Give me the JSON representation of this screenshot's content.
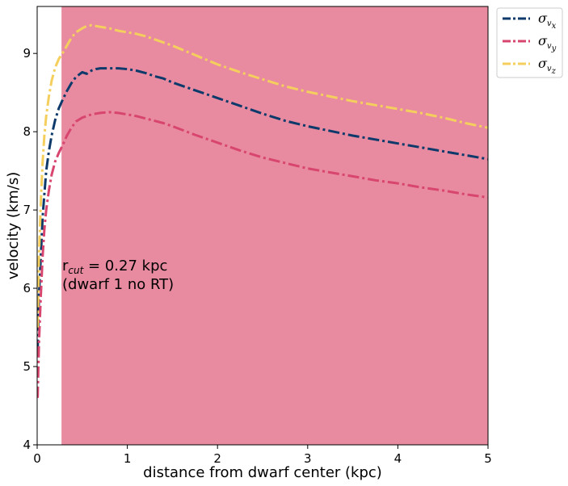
{
  "chart_data": {
    "type": "line",
    "xlabel": "distance from dwarf center (kpc)",
    "ylabel": "velocity (km/s)",
    "xlim": [
      0,
      5
    ],
    "ylim": [
      4,
      9.6
    ],
    "x_ticks": [
      "0",
      "1",
      "2",
      "3",
      "4",
      "5"
    ],
    "y_ticks": [
      "4",
      "5",
      "6",
      "7",
      "8",
      "9"
    ],
    "grid": false,
    "legend_position": "outside top-right",
    "shaded_region": {
      "x_start": 0.27,
      "x_end": 5,
      "color": "#e88ba0"
    },
    "annotation": {
      "line1_prefix": "r",
      "line1_sub": "cut",
      "line1_value": " = 0.27 kpc",
      "line2": "(dwarf 1 no RT)"
    },
    "series": [
      {
        "name": "σ_vx",
        "legend_base": "σ",
        "legend_sub1": "v",
        "legend_sub2": "x",
        "color": "#0d3a6b",
        "style": "dashdot",
        "x": [
          0.005,
          0.02,
          0.04,
          0.06,
          0.08,
          0.1,
          0.13,
          0.16,
          0.2,
          0.24,
          0.28,
          0.33,
          0.38,
          0.43,
          0.5,
          0.55,
          0.6,
          0.65,
          0.7,
          0.8,
          0.9,
          1.0,
          1.1,
          1.2,
          1.3,
          1.4,
          1.5,
          1.75,
          2.0,
          2.25,
          2.5,
          2.75,
          3.0,
          3.25,
          3.5,
          3.75,
          4.0,
          4.25,
          4.5,
          4.75,
          5.0
        ],
        "y": [
          5.2,
          5.9,
          6.4,
          6.9,
          7.2,
          7.5,
          7.75,
          7.95,
          8.15,
          8.3,
          8.4,
          8.52,
          8.62,
          8.7,
          8.76,
          8.74,
          8.78,
          8.8,
          8.81,
          8.81,
          8.81,
          8.8,
          8.78,
          8.75,
          8.71,
          8.68,
          8.63,
          8.53,
          8.43,
          8.33,
          8.23,
          8.14,
          8.07,
          8.01,
          7.95,
          7.9,
          7.85,
          7.8,
          7.75,
          7.7,
          7.65
        ]
      },
      {
        "name": "σ_vy",
        "legend_base": "σ",
        "legend_sub1": "v",
        "legend_sub2": "y",
        "color": "#d8456e",
        "style": "dashdot",
        "x": [
          0.005,
          0.02,
          0.04,
          0.06,
          0.08,
          0.1,
          0.13,
          0.16,
          0.2,
          0.24,
          0.28,
          0.33,
          0.38,
          0.43,
          0.5,
          0.55,
          0.6,
          0.65,
          0.7,
          0.8,
          0.9,
          1.0,
          1.1,
          1.2,
          1.3,
          1.4,
          1.5,
          1.75,
          2.0,
          2.25,
          2.5,
          2.75,
          3.0,
          3.25,
          3.5,
          3.75,
          4.0,
          4.25,
          4.5,
          4.75,
          5.0
        ],
        "y": [
          4.6,
          5.3,
          5.9,
          6.4,
          6.75,
          7.0,
          7.25,
          7.45,
          7.62,
          7.73,
          7.82,
          7.95,
          8.05,
          8.13,
          8.18,
          8.2,
          8.22,
          8.23,
          8.24,
          8.25,
          8.24,
          8.22,
          8.2,
          8.17,
          8.14,
          8.11,
          8.07,
          7.96,
          7.86,
          7.76,
          7.67,
          7.6,
          7.53,
          7.48,
          7.43,
          7.38,
          7.34,
          7.29,
          7.25,
          7.2,
          7.16
        ]
      },
      {
        "name": "σ_vz",
        "legend_base": "σ",
        "legend_sub1": "v",
        "legend_sub2": "z",
        "color": "#f5cf5e",
        "style": "dashdot",
        "x": [
          0.005,
          0.02,
          0.04,
          0.06,
          0.08,
          0.1,
          0.13,
          0.16,
          0.2,
          0.24,
          0.28,
          0.33,
          0.38,
          0.43,
          0.5,
          0.55,
          0.6,
          0.65,
          0.7,
          0.8,
          0.9,
          1.0,
          1.1,
          1.2,
          1.3,
          1.4,
          1.5,
          1.75,
          2.0,
          2.25,
          2.5,
          2.75,
          3.0,
          3.25,
          3.5,
          3.75,
          4.0,
          4.25,
          4.5,
          4.75,
          5.0
        ],
        "y": [
          5.5,
          6.4,
          7.1,
          7.6,
          7.95,
          8.2,
          8.45,
          8.65,
          8.82,
          8.93,
          9.0,
          9.1,
          9.2,
          9.27,
          9.32,
          9.35,
          9.36,
          9.35,
          9.34,
          9.32,
          9.29,
          9.27,
          9.25,
          9.22,
          9.18,
          9.14,
          9.1,
          8.98,
          8.86,
          8.76,
          8.67,
          8.58,
          8.51,
          8.45,
          8.39,
          8.34,
          8.29,
          8.24,
          8.18,
          8.11,
          8.05
        ]
      }
    ]
  }
}
